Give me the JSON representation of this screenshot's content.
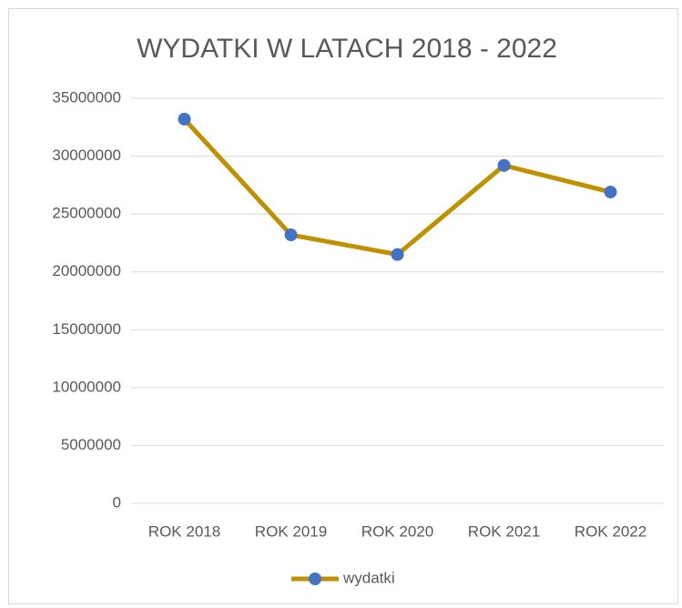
{
  "chart_data": {
    "type": "line",
    "title": "WYDATKI W LATACH 2018 - 2022",
    "categories": [
      "ROK 2018",
      "ROK 2019",
      "ROK 2020",
      "ROK 2021",
      "ROK 2022"
    ],
    "series": [
      {
        "name": "wydatki",
        "color": "#bf9000",
        "marker_color": "#4472c4",
        "values": [
          33200000,
          23200000,
          21500000,
          29200000,
          26900000
        ]
      }
    ],
    "ylim": [
      0,
      35000000
    ],
    "yticks": [
      0,
      5000000,
      10000000,
      15000000,
      20000000,
      25000000,
      30000000,
      35000000
    ],
    "grid": true,
    "legend": "bottom"
  }
}
